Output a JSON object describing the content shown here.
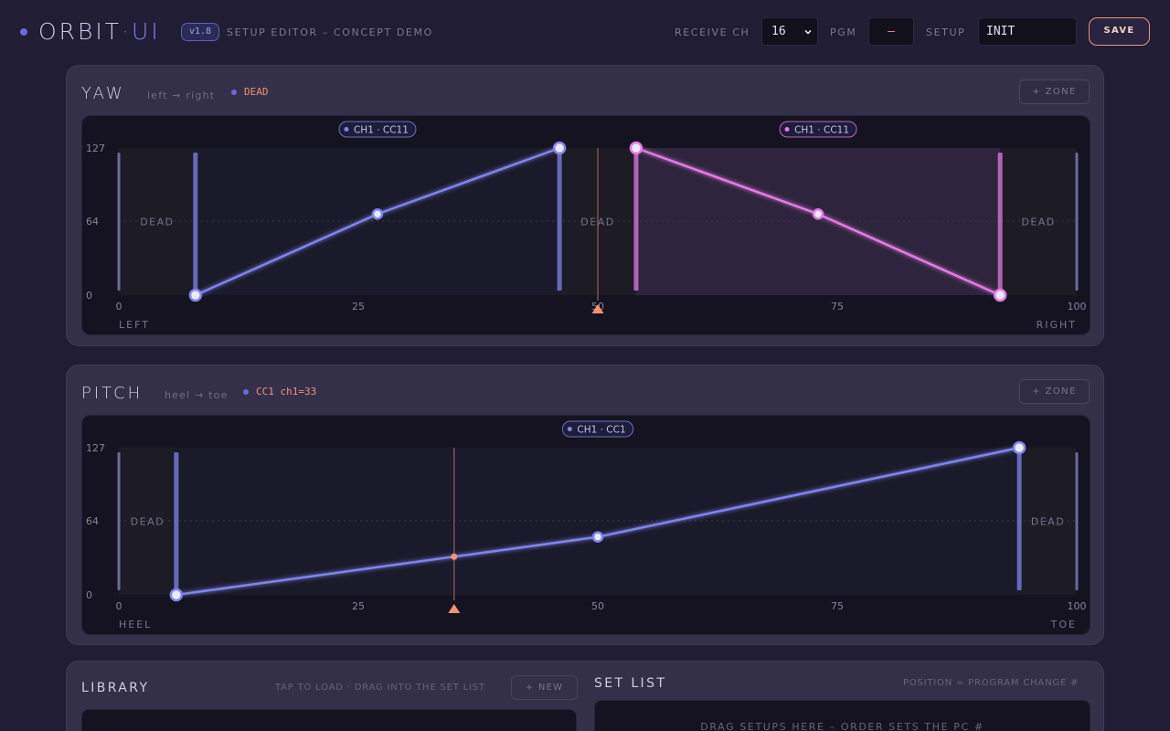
{
  "header": {
    "brand_main": "ORBIT",
    "brand_sep": "·",
    "brand_ui": "UI",
    "version": "v1.8",
    "subtitle": "SETUP EDITOR – CONCEPT DEMO",
    "receive_label": "RECEIVE CH",
    "receive_value": "16",
    "pgm_label": "PGM",
    "pgm_value": "–",
    "setup_label": "SETUP",
    "setup_value": "INIT",
    "save_label": "SAVE"
  },
  "colors": {
    "blue": "#7f84ec",
    "pink": "#e27be6",
    "accent": "#f09372"
  },
  "yaw": {
    "title": "YAW",
    "subtitle": "left → right",
    "status": "DEAD",
    "zone_button": "+ ZONE",
    "left_label": "LEFT",
    "right_label": "RIGHT",
    "y_ticks": [
      "127",
      "64",
      "0"
    ],
    "x_ticks": [
      "0",
      "25",
      "50",
      "75",
      "100"
    ],
    "position": 50,
    "dead_label": "DEAD",
    "dead_zones": [
      [
        0,
        8
      ],
      [
        46,
        54
      ],
      [
        92,
        100
      ]
    ],
    "zones": [
      {
        "label": "CH1 · CC11",
        "color": "blue",
        "start": 8,
        "end": 46,
        "points": [
          [
            8,
            0
          ],
          [
            27,
            70
          ],
          [
            46,
            127
          ]
        ],
        "active": false
      },
      {
        "label": "CH1 · CC11",
        "color": "pink",
        "start": 54,
        "end": 92,
        "points": [
          [
            54,
            127
          ],
          [
            73,
            70
          ],
          [
            92,
            0
          ]
        ],
        "active": true
      }
    ]
  },
  "pitch": {
    "title": "PITCH",
    "subtitle": "heel → toe",
    "status": "CC1 ch1=33",
    "zone_button": "+ ZONE",
    "left_label": "HEEL",
    "right_label": "TOE",
    "y_ticks": [
      "127",
      "64",
      "0"
    ],
    "x_ticks": [
      "0",
      "25",
      "50",
      "75",
      "100"
    ],
    "position": 35,
    "dead_label": "DEAD",
    "dead_zones": [
      [
        0,
        6
      ],
      [
        94,
        100
      ]
    ],
    "zones": [
      {
        "label": "CH1 · CC1",
        "color": "blue",
        "start": 6,
        "end": 94,
        "points": [
          [
            6,
            0
          ],
          [
            50,
            50
          ],
          [
            94,
            127
          ]
        ],
        "active": false
      }
    ]
  },
  "library": {
    "title": "LIBRARY",
    "hint": "TAP TO LOAD · DRAG INTO THE SET LIST",
    "new_button": "+ NEW"
  },
  "setlist": {
    "title": "SET LIST",
    "hint": "POSITION = PROGRAM CHANGE #",
    "drop_text": "DRAG SETUPS HERE – ORDER SETS THE PC #"
  }
}
